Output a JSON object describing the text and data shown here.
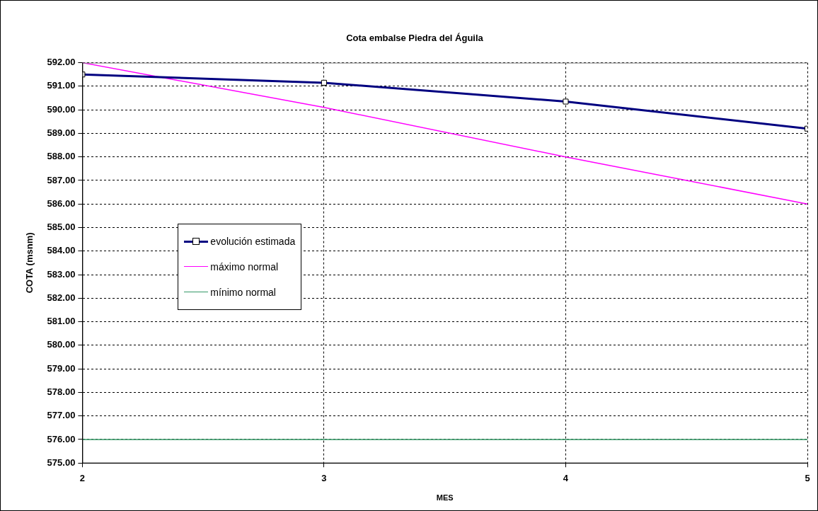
{
  "chart_data": {
    "type": "line",
    "title": "Cota embalse Piedra del Águila",
    "xlabel": "MES",
    "ylabel": "COTA (msnm)",
    "x": [
      2,
      3,
      4,
      5
    ],
    "series": [
      {
        "name": "evolución estimada",
        "color": "#000080",
        "values": [
          591.5,
          591.15,
          590.35,
          589.2
        ],
        "marker": "square"
      },
      {
        "name": "máximo normal",
        "color": "#ff00ff",
        "values": [
          592,
          590.1,
          588,
          586
        ],
        "marker": "none"
      },
      {
        "name": "mínimo normal",
        "color": "#339966",
        "values": [
          576,
          576,
          576,
          576
        ],
        "marker": "none"
      }
    ],
    "xlim": [
      2,
      5
    ],
    "xticks": [
      2,
      3,
      4,
      5
    ],
    "ylim": [
      575,
      592
    ],
    "yticks": [
      {
        "value": 575,
        "label": "575.00"
      },
      {
        "value": 576,
        "label": "576.00"
      },
      {
        "value": 577,
        "label": "577.00"
      },
      {
        "value": 578,
        "label": "578.00"
      },
      {
        "value": 579,
        "label": "579.00"
      },
      {
        "value": 580,
        "label": "580.00"
      },
      {
        "value": 581,
        "label": "581.00"
      },
      {
        "value": 582,
        "label": "582.00"
      },
      {
        "value": 583,
        "label": "583.00"
      },
      {
        "value": 584,
        "label": "584.00"
      },
      {
        "value": 585,
        "label": "585.00"
      },
      {
        "value": 586,
        "label": "586.00"
      },
      {
        "value": 587,
        "label": "587.00"
      },
      {
        "value": 588,
        "label": "588.00"
      },
      {
        "value": 589,
        "label": "589.00"
      },
      {
        "value": 590,
        "label": "590.00"
      },
      {
        "value": 591,
        "label": "591.00"
      },
      {
        "value": 592,
        "label": "592.00"
      }
    ],
    "grid": true,
    "legend": "left",
    "line_style": "solid"
  }
}
